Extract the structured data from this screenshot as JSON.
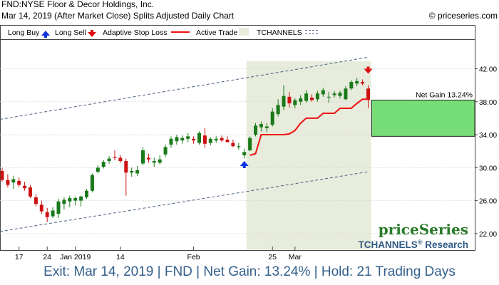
{
  "header": {
    "title": "FND:NYSE Floor & Decor Holdings, Inc.",
    "subtitle": "Mar 14, 2019 (After Market Close)  Splits Adjusted Daily Chart",
    "copyright": "© priceseries.com"
  },
  "legend": {
    "long_buy": "Long Buy",
    "long_sell": "Long Sell",
    "stop_loss": "Adaptive Stop Loss",
    "active_trade": "Active Trade",
    "tchannels": "TCHANNELS"
  },
  "footer": {
    "text": "Exit: Mar 14, 2019 | FND | Net Gain: 13.24% | Hold: 21 Trading Days"
  },
  "chart_data": {
    "type": "candlestick",
    "title": "FND:NYSE Floor & Decor Holdings, Inc.",
    "ylim": [
      20.0,
      45.5
    ],
    "y_ticks": [
      22.0,
      26.0,
      30.0,
      34.0,
      38.0,
      42.0
    ],
    "y_tick_labels": [
      "22.00",
      "26.00",
      "30.00",
      "34.00",
      "38.00",
      "42.00"
    ],
    "x_tick_labels": [
      {
        "label": "17",
        "index": 3
      },
      {
        "label": "24",
        "index": 8
      },
      {
        "label": "Jan 2019",
        "index": 13
      },
      {
        "label": "14",
        "index": 21
      },
      {
        "label": "Feb",
        "index": 34
      },
      {
        "label": "25",
        "index": 48
      },
      {
        "label": "Mar",
        "index": 52
      }
    ],
    "candles": [
      {
        "o": 29.6,
        "h": 30.0,
        "l": 28.3,
        "c": 28.5
      },
      {
        "o": 28.5,
        "h": 29.2,
        "l": 27.6,
        "c": 27.9
      },
      {
        "o": 28.2,
        "h": 29.0,
        "l": 27.4,
        "c": 28.6
      },
      {
        "o": 28.4,
        "h": 28.8,
        "l": 27.7,
        "c": 27.9
      },
      {
        "o": 27.8,
        "h": 28.3,
        "l": 27.2,
        "c": 27.5
      },
      {
        "o": 27.6,
        "h": 27.9,
        "l": 26.3,
        "c": 26.5
      },
      {
        "o": 26.4,
        "h": 26.8,
        "l": 25.3,
        "c": 25.6
      },
      {
        "o": 25.5,
        "h": 26.0,
        "l": 24.4,
        "c": 24.7
      },
      {
        "o": 24.6,
        "h": 25.1,
        "l": 23.4,
        "c": 24.0
      },
      {
        "o": 24.1,
        "h": 25.2,
        "l": 23.9,
        "c": 24.8
      },
      {
        "o": 24.4,
        "h": 26.2,
        "l": 23.9,
        "c": 25.9
      },
      {
        "o": 25.6,
        "h": 26.4,
        "l": 24.9,
        "c": 26.1
      },
      {
        "o": 25.9,
        "h": 26.6,
        "l": 25.2,
        "c": 26.3
      },
      {
        "o": 26.0,
        "h": 26.5,
        "l": 25.4,
        "c": 26.3
      },
      {
        "o": 26.0,
        "h": 26.6,
        "l": 25.3,
        "c": 26.5
      },
      {
        "o": 26.4,
        "h": 27.4,
        "l": 26.2,
        "c": 27.2
      },
      {
        "o": 27.2,
        "h": 29.3,
        "l": 27.0,
        "c": 29.1
      },
      {
        "o": 29.5,
        "h": 30.3,
        "l": 29.3,
        "c": 30.0
      },
      {
        "o": 30.1,
        "h": 30.9,
        "l": 29.9,
        "c": 30.7
      },
      {
        "o": 30.8,
        "h": 31.4,
        "l": 30.5,
        "c": 31.1
      },
      {
        "o": 31.3,
        "h": 32.1,
        "l": 30.9,
        "c": 31.2
      },
      {
        "o": 31.2,
        "h": 31.5,
        "l": 30.6,
        "c": 30.8
      },
      {
        "o": 30.8,
        "h": 31.1,
        "l": 26.6,
        "c": 29.4
      },
      {
        "o": 29.4,
        "h": 30.0,
        "l": 28.9,
        "c": 29.6
      },
      {
        "o": 29.3,
        "h": 30.2,
        "l": 29.0,
        "c": 29.7
      },
      {
        "o": 30.5,
        "h": 32.5,
        "l": 30.3,
        "c": 32.1
      },
      {
        "o": 31.2,
        "h": 31.7,
        "l": 30.6,
        "c": 31.0
      },
      {
        "o": 30.6,
        "h": 31.2,
        "l": 30.1,
        "c": 30.8
      },
      {
        "o": 30.6,
        "h": 31.5,
        "l": 30.4,
        "c": 31.0
      },
      {
        "o": 31.6,
        "h": 32.8,
        "l": 31.3,
        "c": 32.5
      },
      {
        "o": 32.8,
        "h": 33.8,
        "l": 32.4,
        "c": 33.5
      },
      {
        "o": 33.2,
        "h": 34.0,
        "l": 32.8,
        "c": 33.7
      },
      {
        "o": 33.3,
        "h": 33.9,
        "l": 32.9,
        "c": 33.6
      },
      {
        "o": 33.5,
        "h": 34.2,
        "l": 33.1,
        "c": 33.8
      },
      {
        "o": 33.5,
        "h": 33.8,
        "l": 32.9,
        "c": 33.3
      },
      {
        "o": 33.0,
        "h": 34.4,
        "l": 32.8,
        "c": 34.2
      },
      {
        "o": 33.9,
        "h": 34.8,
        "l": 32.4,
        "c": 32.9
      },
      {
        "o": 33.0,
        "h": 33.7,
        "l": 32.7,
        "c": 33.5
      },
      {
        "o": 33.3,
        "h": 33.8,
        "l": 33.0,
        "c": 33.5
      },
      {
        "o": 33.6,
        "h": 33.9,
        "l": 33.1,
        "c": 33.3
      },
      {
        "o": 33.4,
        "h": 33.8,
        "l": 33.1,
        "c": 33.1
      },
      {
        "o": 33.0,
        "h": 33.4,
        "l": 32.5,
        "c": 32.6
      },
      {
        "o": 32.5,
        "h": 33.0,
        "l": 32.2,
        "c": 32.6
      },
      {
        "o": 31.5,
        "h": 32.3,
        "l": 31.1,
        "c": 31.9
      },
      {
        "o": 32.1,
        "h": 33.8,
        "l": 32.0,
        "c": 33.6
      },
      {
        "o": 34.0,
        "h": 35.4,
        "l": 33.8,
        "c": 35.1
      },
      {
        "o": 34.9,
        "h": 35.6,
        "l": 34.4,
        "c": 35.3
      },
      {
        "o": 34.8,
        "h": 35.4,
        "l": 34.3,
        "c": 35.0
      },
      {
        "o": 35.2,
        "h": 37.2,
        "l": 35.0,
        "c": 36.8
      },
      {
        "o": 36.5,
        "h": 38.3,
        "l": 36.2,
        "c": 37.6
      },
      {
        "o": 37.4,
        "h": 40.0,
        "l": 37.0,
        "c": 38.7
      },
      {
        "o": 38.6,
        "h": 39.2,
        "l": 37.3,
        "c": 37.8
      },
      {
        "o": 37.6,
        "h": 38.4,
        "l": 37.2,
        "c": 38.2
      },
      {
        "o": 38.0,
        "h": 38.8,
        "l": 37.6,
        "c": 38.4
      },
      {
        "o": 38.1,
        "h": 39.4,
        "l": 37.9,
        "c": 39.0
      },
      {
        "o": 38.5,
        "h": 38.9,
        "l": 38.0,
        "c": 38.2
      },
      {
        "o": 38.3,
        "h": 39.3,
        "l": 38.0,
        "c": 39.0
      },
      {
        "o": 38.9,
        "h": 39.7,
        "l": 38.6,
        "c": 39.4
      },
      {
        "o": 38.6,
        "h": 39.2,
        "l": 37.9,
        "c": 38.6
      },
      {
        "o": 38.8,
        "h": 39.3,
        "l": 38.5,
        "c": 39.0
      },
      {
        "o": 38.7,
        "h": 39.3,
        "l": 38.4,
        "c": 39.1
      },
      {
        "o": 38.3,
        "h": 39.9,
        "l": 38.2,
        "c": 39.6
      },
      {
        "o": 39.6,
        "h": 40.6,
        "l": 39.4,
        "c": 40.4
      },
      {
        "o": 40.2,
        "h": 40.9,
        "l": 39.9,
        "c": 40.5
      },
      {
        "o": 40.4,
        "h": 40.7,
        "l": 40.0,
        "c": 40.2
      },
      {
        "o": 39.6,
        "h": 40.0,
        "l": 37.2,
        "c": 38.2
      }
    ],
    "stop_loss": {
      "start_index": 44,
      "values": [
        31.5,
        31.7,
        34.0,
        34.0,
        34.0,
        34.0,
        34.0,
        34.1,
        34.5,
        35.4,
        36.0,
        36.0,
        36.0,
        36.6,
        36.6,
        36.6,
        37.2,
        37.2,
        37.2,
        37.8,
        38.3,
        38.3
      ]
    },
    "channel": {
      "upper": [
        {
          "index": 0,
          "value": 35.9
        },
        {
          "index": 65,
          "value": 43.4
        }
      ],
      "lower": [
        {
          "index": 0,
          "value": 22.3
        },
        {
          "index": 65,
          "value": 29.5
        }
      ]
    },
    "active_trade": {
      "start_index": 44,
      "end_index": 65
    },
    "entry": {
      "index": 43,
      "price": 30.2
    },
    "exit": {
      "index": 65,
      "price": 42.0
    },
    "net_gain_label": "Net Gain 13.24%",
    "net_gain_box": {
      "from": 33.8,
      "to": 38.2
    },
    "colors": {
      "up": "#1a7a1a",
      "down": "#cc1111",
      "stop_loss": "#ee1111",
      "channel": "#4a6080",
      "active_bg": "#e8ecdc",
      "gain_fill": "#77dd77",
      "buy": "#1133dd",
      "sell": "#dd1111"
    },
    "watermark": {
      "brand": "priceSeries",
      "product": "TCHANNELS",
      "sup": "®",
      "suffix": " Research"
    }
  }
}
